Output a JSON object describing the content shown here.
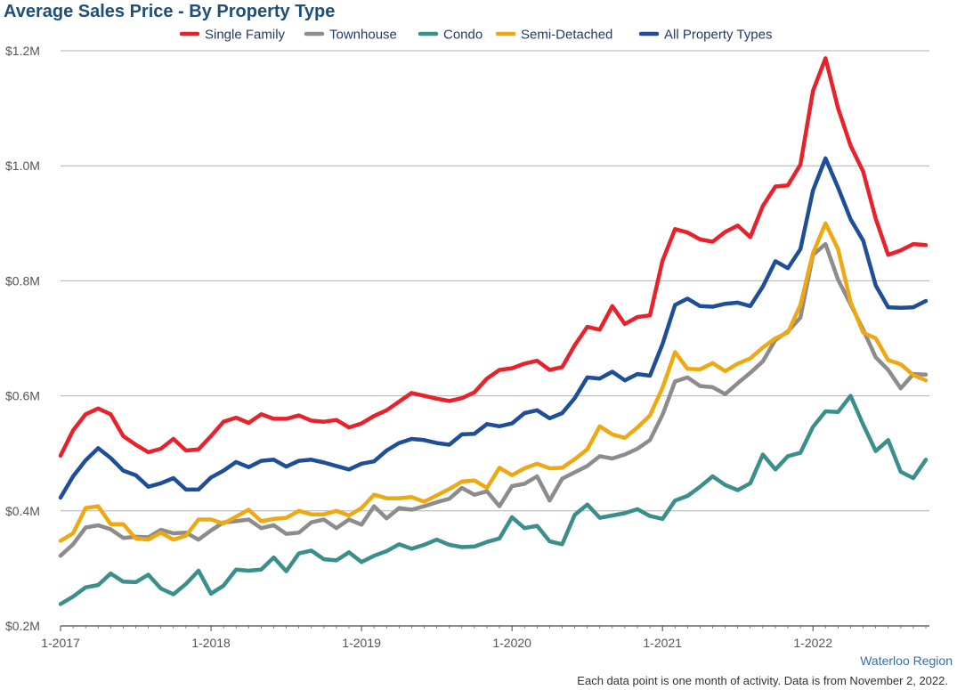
{
  "chart_data": {
    "type": "line",
    "title": "Average Sales Price - By Property Type",
    "xlabel": "",
    "ylabel": "",
    "ylim": [
      0.2,
      1.2
    ],
    "y_unit": "$M",
    "y_ticks": [
      {
        "value": 1.2,
        "label": "$1.2M"
      },
      {
        "value": 1.0,
        "label": "$1.0M"
      },
      {
        "value": 0.8,
        "label": "$0.8M"
      },
      {
        "value": 0.6,
        "label": "$0.6M"
      },
      {
        "value": 0.4,
        "label": "$0.4M"
      },
      {
        "value": 0.2,
        "label": "$0.2M"
      }
    ],
    "x_ticks": [
      "1-2017",
      "1-2018",
      "1-2019",
      "1-2020",
      "1-2021",
      "1-2022"
    ],
    "x_start": "2017-01",
    "x_end": "2022-10",
    "grid": "horizontal",
    "legend_position": "top",
    "series": [
      {
        "name": "Single Family",
        "color": "#e8212b",
        "values": [
          0.496,
          0.54,
          0.568,
          0.578,
          0.568,
          0.53,
          0.515,
          0.502,
          0.508,
          0.525,
          0.505,
          0.507,
          0.53,
          0.555,
          0.562,
          0.553,
          0.568,
          0.56,
          0.56,
          0.566,
          0.557,
          0.555,
          0.558,
          0.545,
          0.552,
          0.565,
          0.575,
          0.59,
          0.605,
          0.6,
          0.595,
          0.591,
          0.596,
          0.606,
          0.63,
          0.645,
          0.648,
          0.656,
          0.661,
          0.645,
          0.65,
          0.688,
          0.72,
          0.715,
          0.756,
          0.725,
          0.737,
          0.74,
          0.835,
          0.89,
          0.884,
          0.872,
          0.868,
          0.885,
          0.896,
          0.876,
          0.93,
          0.964,
          0.966,
          1.002,
          1.13,
          1.187,
          1.1,
          1.035,
          0.99,
          0.908,
          0.845,
          0.853,
          0.864,
          0.862
        ]
      },
      {
        "name": "Townhouse",
        "color": "#8c8c8c",
        "values": [
          0.322,
          0.342,
          0.371,
          0.375,
          0.368,
          0.353,
          0.355,
          0.354,
          0.367,
          0.361,
          0.362,
          0.35,
          0.366,
          0.38,
          0.382,
          0.385,
          0.37,
          0.375,
          0.36,
          0.362,
          0.38,
          0.385,
          0.37,
          0.385,
          0.376,
          0.408,
          0.387,
          0.405,
          0.402,
          0.408,
          0.415,
          0.421,
          0.44,
          0.428,
          0.434,
          0.408,
          0.443,
          0.447,
          0.46,
          0.418,
          0.456,
          0.467,
          0.478,
          0.495,
          0.491,
          0.498,
          0.508,
          0.523,
          0.567,
          0.625,
          0.632,
          0.617,
          0.615,
          0.603,
          0.622,
          0.64,
          0.66,
          0.697,
          0.712,
          0.736,
          0.845,
          0.864,
          0.802,
          0.759,
          0.715,
          0.667,
          0.645,
          0.613,
          0.638,
          0.637
        ]
      },
      {
        "name": "Condo",
        "color": "#3a8f8a",
        "values": [
          0.238,
          0.251,
          0.267,
          0.271,
          0.291,
          0.277,
          0.276,
          0.289,
          0.265,
          0.255,
          0.273,
          0.296,
          0.256,
          0.27,
          0.298,
          0.296,
          0.298,
          0.319,
          0.295,
          0.326,
          0.331,
          0.316,
          0.314,
          0.328,
          0.311,
          0.322,
          0.33,
          0.342,
          0.334,
          0.341,
          0.35,
          0.341,
          0.337,
          0.338,
          0.346,
          0.352,
          0.389,
          0.37,
          0.374,
          0.347,
          0.342,
          0.393,
          0.411,
          0.388,
          0.392,
          0.396,
          0.403,
          0.391,
          0.386,
          0.418,
          0.426,
          0.442,
          0.46,
          0.445,
          0.436,
          0.448,
          0.498,
          0.472,
          0.495,
          0.501,
          0.546,
          0.573,
          0.572,
          0.6,
          0.55,
          0.504,
          0.523,
          0.468,
          0.457,
          0.489
        ]
      },
      {
        "name": "Semi-Detached",
        "color": "#f0a812",
        "values": [
          0.348,
          0.361,
          0.405,
          0.408,
          0.377,
          0.377,
          0.352,
          0.35,
          0.362,
          0.35,
          0.357,
          0.385,
          0.385,
          0.378,
          0.39,
          0.402,
          0.382,
          0.386,
          0.388,
          0.4,
          0.394,
          0.394,
          0.4,
          0.392,
          0.405,
          0.428,
          0.422,
          0.422,
          0.424,
          0.416,
          0.427,
          0.438,
          0.451,
          0.453,
          0.44,
          0.475,
          0.462,
          0.474,
          0.482,
          0.474,
          0.475,
          0.49,
          0.507,
          0.547,
          0.533,
          0.527,
          0.545,
          0.566,
          0.614,
          0.676,
          0.647,
          0.646,
          0.657,
          0.643,
          0.656,
          0.665,
          0.684,
          0.7,
          0.71,
          0.758,
          0.848,
          0.9,
          0.855,
          0.763,
          0.71,
          0.7,
          0.662,
          0.655,
          0.636,
          0.627
        ]
      },
      {
        "name": "All Property Types",
        "color": "#1f4e99",
        "values": [
          0.423,
          0.46,
          0.488,
          0.509,
          0.492,
          0.47,
          0.462,
          0.442,
          0.448,
          0.457,
          0.437,
          0.437,
          0.458,
          0.47,
          0.485,
          0.476,
          0.487,
          0.489,
          0.477,
          0.487,
          0.489,
          0.484,
          0.478,
          0.472,
          0.482,
          0.486,
          0.505,
          0.518,
          0.525,
          0.523,
          0.518,
          0.515,
          0.533,
          0.534,
          0.551,
          0.547,
          0.552,
          0.57,
          0.575,
          0.561,
          0.57,
          0.596,
          0.632,
          0.63,
          0.642,
          0.627,
          0.638,
          0.635,
          0.69,
          0.758,
          0.769,
          0.756,
          0.755,
          0.76,
          0.762,
          0.756,
          0.79,
          0.834,
          0.822,
          0.855,
          0.957,
          1.013,
          0.962,
          0.907,
          0.87,
          0.792,
          0.754,
          0.753,
          0.754,
          0.765
        ]
      }
    ]
  },
  "footer": {
    "region": "Waterloo Region",
    "note": "Each data point is one month of activity. Data is from November 2, 2022."
  }
}
